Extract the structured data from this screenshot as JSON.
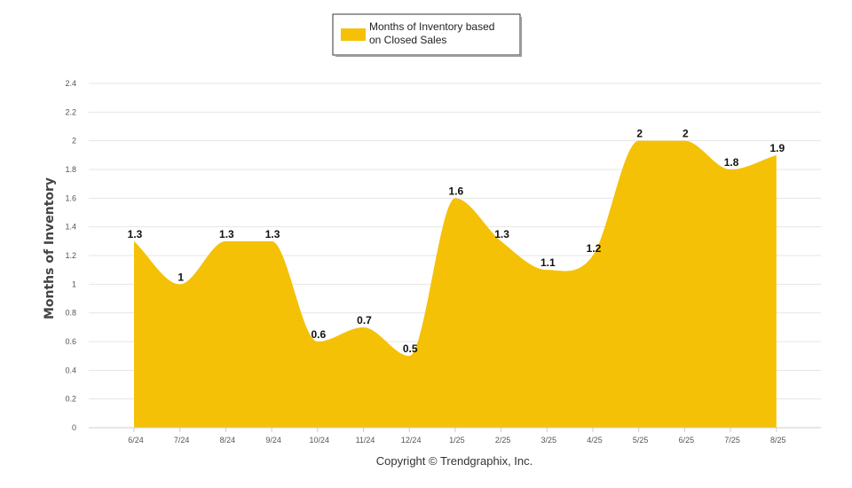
{
  "chart_data": {
    "type": "area",
    "categories": [
      "6/24",
      "7/24",
      "8/24",
      "9/24",
      "10/24",
      "11/24",
      "12/24",
      "1/25",
      "2/25",
      "3/25",
      "4/25",
      "5/25",
      "6/25",
      "7/25",
      "8/25"
    ],
    "series": [
      {
        "name": "Months of Inventory based on Closed Sales",
        "values": [
          1.3,
          1,
          1.3,
          1.3,
          0.6,
          0.7,
          0.5,
          1.6,
          1.3,
          1.1,
          1.2,
          2,
          2,
          1.8,
          1.9
        ],
        "labels": [
          "1.3",
          "1",
          "1.3",
          "1.3",
          "0.6",
          "0.7",
          "0.5",
          "1.6",
          "1.3",
          "1.1",
          "1.2",
          "2",
          "2",
          "1.8",
          "1.9"
        ],
        "color": "#f5c107"
      }
    ],
    "legend_lines": [
      "Months of Inventory based",
      "on Closed Sales"
    ],
    "ylabel": "Months of Inventory",
    "xlabel": "",
    "ylim": [
      0,
      2.4
    ],
    "yticks": [
      0,
      0.2,
      0.4,
      0.6,
      0.8,
      1,
      1.2,
      1.4,
      1.6,
      1.8,
      2,
      2.2,
      2.4
    ],
    "ytick_labels": [
      "0",
      "0.2",
      "0.4",
      "0.6",
      "0.8",
      "1",
      "1.2",
      "1.4",
      "1.6",
      "1.8",
      "2",
      "2.2",
      "2.4"
    ],
    "grid": true,
    "legend_position": "top-center"
  },
  "copyright": "Copyright © Trendgraphix, Inc."
}
